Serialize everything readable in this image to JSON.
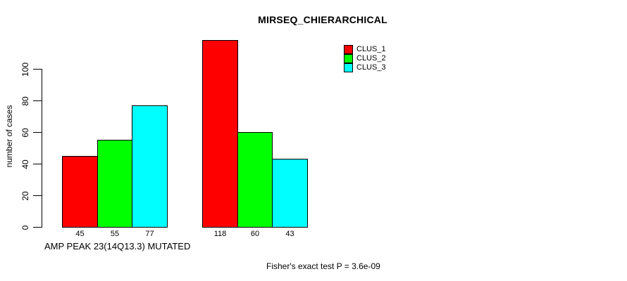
{
  "chart_data": {
    "type": "bar",
    "title": "MIRSEQ_CHIERARCHICAL",
    "ylabel": "number of cases",
    "xlabel": "AMP PEAK 23(14Q13.3) MUTATED",
    "annotation": "Fisher's exact test P = 3.6e-09",
    "categories": [
      "AMP PEAK 23(14Q13.3) MUTATED",
      ""
    ],
    "series": [
      {
        "name": "CLUS_1",
        "color": "#ff0000",
        "values": [
          45,
          118
        ]
      },
      {
        "name": "CLUS_2",
        "color": "#00ff00",
        "values": [
          55,
          60
        ]
      },
      {
        "name": "CLUS_3",
        "color": "#00ffff",
        "values": [
          77,
          43
        ]
      }
    ],
    "yticks": [
      0,
      20,
      40,
      60,
      80,
      100
    ],
    "ylim": [
      0,
      118
    ],
    "grid": false,
    "bar_value_labels": true,
    "bar_border_color": "#000000",
    "legend_position": "top-right"
  }
}
